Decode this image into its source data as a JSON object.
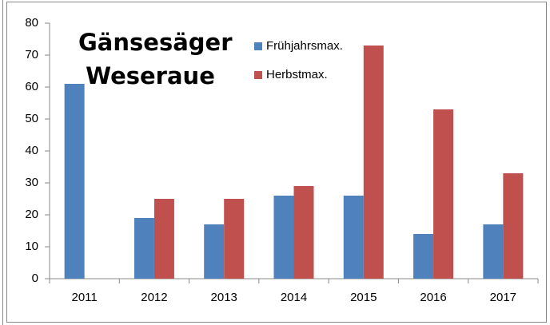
{
  "chart_data": {
    "type": "bar",
    "title": "Gänsesäger Weseraue",
    "categories": [
      "2011",
      "2012",
      "2013",
      "2014",
      "2015",
      "2016",
      "2017"
    ],
    "series": [
      {
        "name": "Frühjahrsmax.",
        "color": "#4f81bd",
        "values": [
          61,
          19,
          17,
          26,
          26,
          14,
          17
        ]
      },
      {
        "name": "Herbstmax.",
        "color": "#c0504d",
        "values": [
          null,
          25,
          25,
          29,
          73,
          53,
          33
        ]
      }
    ],
    "ylim": [
      0,
      80
    ],
    "yticks": [
      0,
      10,
      20,
      30,
      40,
      50,
      60,
      70,
      80
    ],
    "grid": false
  }
}
